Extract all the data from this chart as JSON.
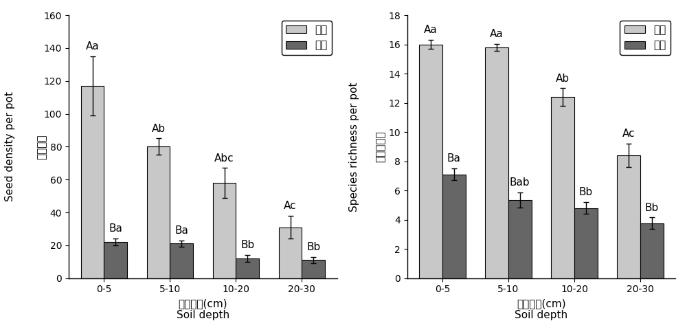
{
  "categories": [
    "0-5",
    "5-10",
    "10-20",
    "20-30"
  ],
  "chart1": {
    "ylabel_cn": "种子密度",
    "ylabel_en": "Seed density per pot",
    "xlabel_cn": "土层深度(cm)",
    "xlabel_en": "Soil depth",
    "ylim": [
      0,
      160
    ],
    "yticks": [
      0,
      20,
      40,
      60,
      80,
      100,
      120,
      140,
      160
    ],
    "humid_values": [
      117,
      80,
      58,
      31
    ],
    "flood_values": [
      22,
      21,
      12,
      11
    ],
    "humid_errors": [
      18,
      5,
      9,
      7
    ],
    "flood_errors": [
      2,
      2,
      2,
      2
    ],
    "humid_labels": [
      "Aa",
      "Ab",
      "Abc",
      "Ac"
    ],
    "flood_labels": [
      "Ba",
      "Ba",
      "Bb",
      "Bb"
    ]
  },
  "chart2": {
    "ylabel_cn": "物种丰富度",
    "ylabel_en": "Species richness per pot",
    "xlabel_cn": "土层深度(cm)",
    "xlabel_en": "Soil depth",
    "ylim": [
      0,
      18
    ],
    "yticks": [
      0,
      2,
      4,
      6,
      8,
      10,
      12,
      14,
      16,
      18
    ],
    "humid_values": [
      16.0,
      15.8,
      12.4,
      8.4
    ],
    "flood_values": [
      7.1,
      5.35,
      4.8,
      3.75
    ],
    "humid_errors": [
      0.3,
      0.25,
      0.6,
      0.8
    ],
    "flood_errors": [
      0.4,
      0.5,
      0.4,
      0.4
    ],
    "humid_labels": [
      "Aa",
      "Aa",
      "Ab",
      "Ac"
    ],
    "flood_labels": [
      "Ba",
      "Bab",
      "Bb",
      "Bb"
    ]
  },
  "humid_color": "#c8c8c8",
  "flood_color": "#666666",
  "bar_width": 0.35,
  "legend_humid": "湿润",
  "legend_flood": "淡水",
  "label_fontsize": 11,
  "tick_fontsize": 10,
  "annotation_fontsize": 11,
  "figsize": [
    10.0,
    4.83
  ],
  "dpi": 100
}
